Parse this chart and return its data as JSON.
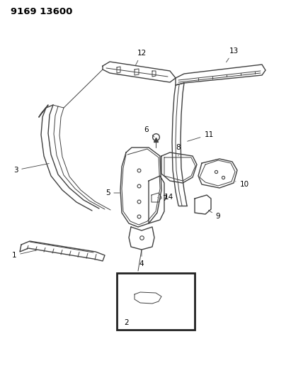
{
  "title": "9169 13600",
  "background_color": "#ffffff",
  "line_color": "#404040",
  "text_color": "#000000",
  "fig_width": 4.11,
  "fig_height": 5.33,
  "dpi": 100
}
